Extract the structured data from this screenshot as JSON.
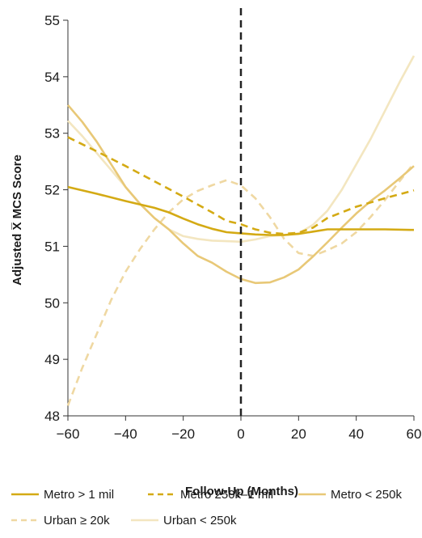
{
  "chart_data": {
    "type": "line",
    "xlabel": "Follow-Up (Months)",
    "ylabel": "Adjusted X̅ MCS Score",
    "xlim": [
      -60,
      60
    ],
    "ylim": [
      48,
      55
    ],
    "xticks": [
      -60,
      -40,
      -20,
      0,
      20,
      40,
      60
    ],
    "yticks": [
      48,
      49,
      50,
      51,
      52,
      53,
      54,
      55
    ],
    "xtick_labels": [
      "−60",
      "−40",
      "−20",
      "0",
      "20",
      "40",
      "60"
    ],
    "ytick_labels": [
      "48",
      "49",
      "50",
      "51",
      "52",
      "53",
      "54",
      "55"
    ],
    "reference_line_x": 0,
    "legend_position": "bottom",
    "grid": false,
    "series": [
      {
        "name": "Metro > 1 mil",
        "color": "#d4aa14",
        "dash": "solid",
        "x": [
          -60,
          -50,
          -40,
          -30,
          -25,
          -20,
          -15,
          -10,
          -5,
          0,
          5,
          10,
          15,
          20,
          25,
          30,
          40,
          50,
          60
        ],
        "y": [
          52.05,
          51.93,
          51.8,
          51.68,
          51.6,
          51.49,
          51.39,
          51.31,
          51.25,
          51.23,
          51.21,
          51.2,
          51.2,
          51.22,
          51.26,
          51.3,
          51.3,
          51.3,
          51.29
        ]
      },
      {
        "name": "Metro 250k–1 mil",
        "color": "#d4aa14",
        "dash": "dashed",
        "x": [
          -60,
          -50,
          -40,
          -30,
          -20,
          -10,
          -5,
          0,
          5,
          10,
          15,
          20,
          25,
          30,
          40,
          50,
          60
        ],
        "y": [
          52.93,
          52.68,
          52.42,
          52.15,
          51.88,
          51.6,
          51.45,
          51.39,
          51.3,
          51.24,
          51.22,
          51.24,
          51.33,
          51.5,
          51.7,
          51.85,
          51.99
        ]
      },
      {
        "name": "Metro < 250k",
        "color": "#e8c877",
        "dash": "solid",
        "x": [
          -60,
          -55,
          -50,
          -45,
          -40,
          -35,
          -30,
          -25,
          -20,
          -15,
          -10,
          -5,
          0,
          5,
          10,
          15,
          20,
          25,
          30,
          35,
          40,
          45,
          50,
          55,
          60
        ],
        "y": [
          53.5,
          53.2,
          52.85,
          52.45,
          52.05,
          51.75,
          51.5,
          51.3,
          51.05,
          50.83,
          50.71,
          50.55,
          50.42,
          50.35,
          50.36,
          50.45,
          50.59,
          50.82,
          51.07,
          51.33,
          51.58,
          51.8,
          51.99,
          52.2,
          52.42
        ]
      },
      {
        "name": "Urban ≥ 20k",
        "color": "#efd8a2",
        "dash": "dashed",
        "x": [
          -60,
          -55,
          -50,
          -45,
          -40,
          -35,
          -30,
          -25,
          -20,
          -15,
          -10,
          -5,
          0,
          5,
          10,
          15,
          20,
          25,
          30,
          35,
          40,
          45,
          50,
          55,
          60
        ],
        "y": [
          48.18,
          48.85,
          49.45,
          50.05,
          50.55,
          50.95,
          51.3,
          51.6,
          51.83,
          51.98,
          52.08,
          52.17,
          52.08,
          51.85,
          51.52,
          51.13,
          50.88,
          50.83,
          50.93,
          51.05,
          51.25,
          51.52,
          51.82,
          52.15,
          52.47
        ]
      },
      {
        "name": "Urban < 250k",
        "color": "#f3e6c0",
        "dash": "solid",
        "x": [
          -60,
          -55,
          -50,
          -45,
          -40,
          -35,
          -30,
          -25,
          -20,
          -15,
          -10,
          -5,
          0,
          5,
          10,
          15,
          20,
          25,
          30,
          35,
          40,
          45,
          50,
          55,
          60
        ],
        "y": [
          53.22,
          52.95,
          52.65,
          52.35,
          52.05,
          51.75,
          51.5,
          51.3,
          51.18,
          51.13,
          51.1,
          51.09,
          51.08,
          51.12,
          51.18,
          51.2,
          51.23,
          51.38,
          51.63,
          52.0,
          52.45,
          52.9,
          53.4,
          53.9,
          54.37
        ]
      }
    ]
  }
}
